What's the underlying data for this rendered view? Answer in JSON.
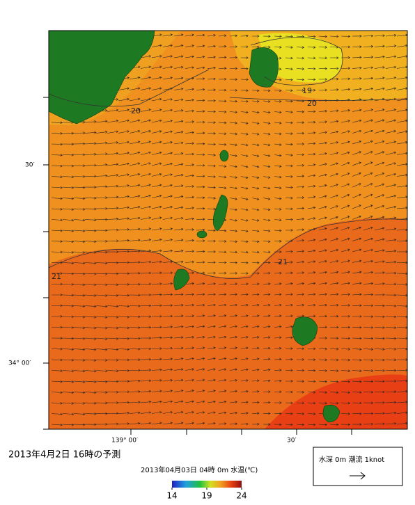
{
  "map": {
    "lat_labels": [
      "30′",
      "34° 00′"
    ],
    "lon_labels": [
      "139° 00′",
      "30′"
    ],
    "contour_labels": [
      "20",
      "19",
      "20",
      "21",
      "21"
    ]
  },
  "caption": "2013年4月2日 16時の予測",
  "subtitle": "2013年04月03日 04時 0m 水温(℃)",
  "colorbar": {
    "ticks": [
      14,
      19,
      24
    ]
  },
  "legend": {
    "text": "水深 0m 潮流 1knot"
  }
}
